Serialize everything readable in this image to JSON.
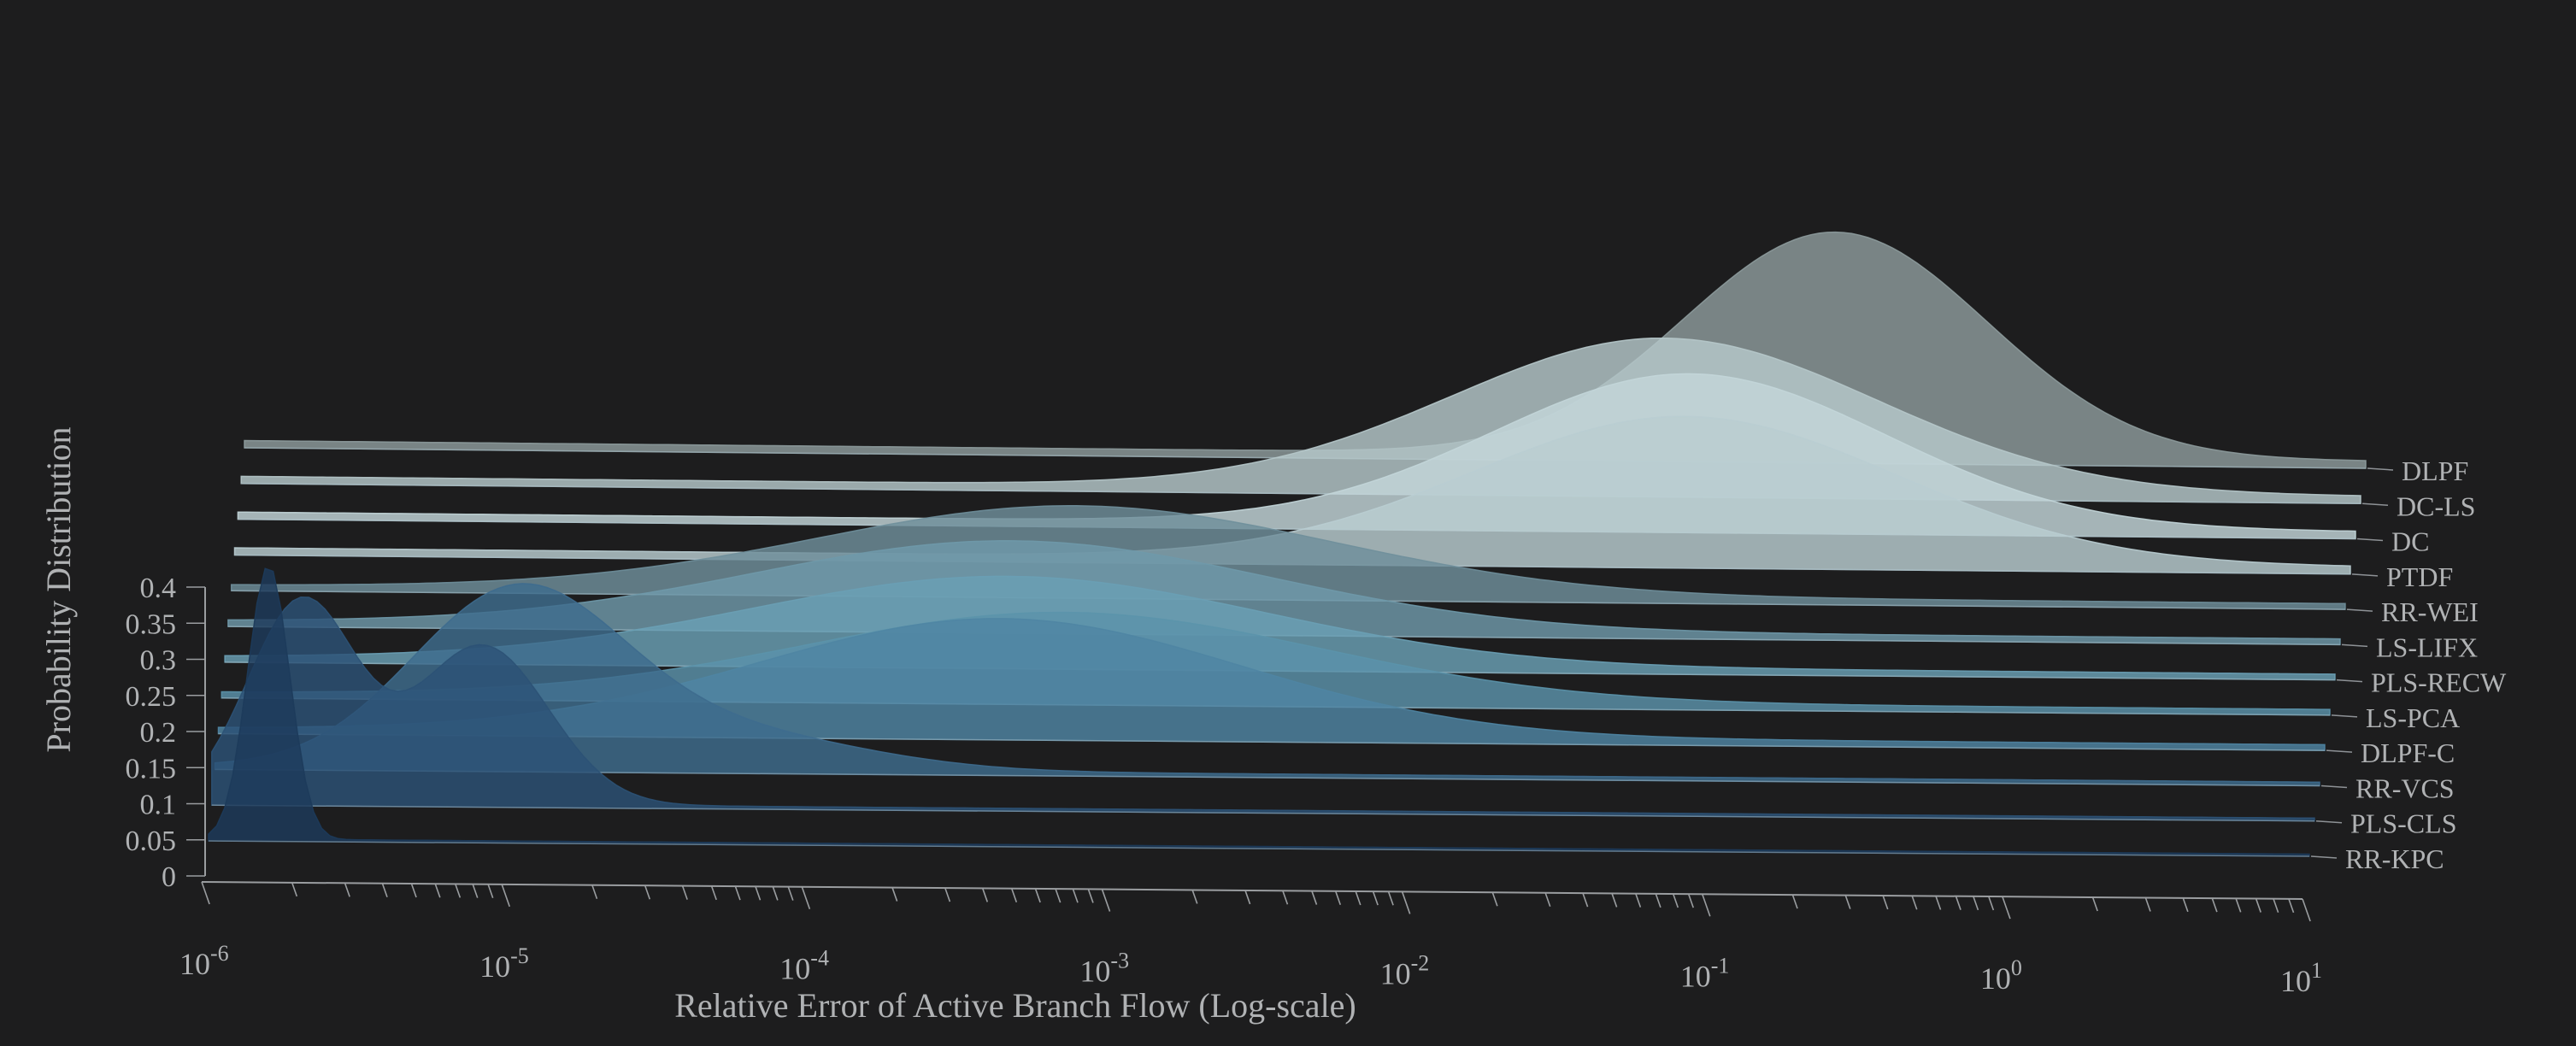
{
  "chart_data": {
    "type": "area",
    "subtype": "3d-ridgeline-density",
    "xlabel": "Relative Error of Active Branch Flow (Log-scale)",
    "ylabel": "Probability Distribution",
    "x_scale": "log",
    "xlim": [
      1e-06,
      10
    ],
    "x_tick_labels": [
      {
        "base": "10",
        "exp": "-6"
      },
      {
        "base": "10",
        "exp": "-5"
      },
      {
        "base": "10",
        "exp": "-4"
      },
      {
        "base": "10",
        "exp": "-3"
      },
      {
        "base": "10",
        "exp": "-2"
      },
      {
        "base": "10",
        "exp": "-1"
      },
      {
        "base": "10",
        "exp": "0"
      },
      {
        "base": "10",
        "exp": "1"
      }
    ],
    "ylim": [
      0,
      0.4
    ],
    "y_ticks": [
      0,
      0.05,
      0.1,
      0.15,
      0.2,
      0.25,
      0.3,
      0.35,
      0.4
    ],
    "y_tick_labels": [
      "0",
      "0.05",
      "0.1",
      "0.15",
      "0.2",
      "0.25",
      "0.3",
      "0.35",
      "0.4"
    ],
    "grid": false,
    "legend": "none (series labeled at right end of each ridge)",
    "series": [
      {
        "name": "DLPF",
        "color": "#8d9b9c",
        "components": [
          {
            "log10_center": -0.75,
            "sd": 0.5,
            "peak": 0.31
          }
        ],
        "tail": 0.01
      },
      {
        "name": "DC-LS",
        "color": "#b6c8ca",
        "components": [
          {
            "log10_center": -1.3,
            "sd": 0.7,
            "peak": 0.21
          }
        ],
        "tail": 0.01
      },
      {
        "name": "DC",
        "color": "#c3d6d9",
        "components": [
          {
            "log10_center": -1.2,
            "sd": 0.65,
            "peak": 0.21
          }
        ],
        "tail": 0.01
      },
      {
        "name": "PTDF",
        "color": "#b9cdd1",
        "components": [
          {
            "log10_center": -1.2,
            "sd": 0.7,
            "peak": 0.2
          }
        ],
        "tail": 0.01
      },
      {
        "name": "RR-WEI",
        "color": "#6f8f9b",
        "components": [
          {
            "log10_center": -3.2,
            "sd": 0.85,
            "peak": 0.12
          }
        ],
        "tail": 0.008
      },
      {
        "name": "LS-LIFX",
        "color": "#6f99aa",
        "components": [
          {
            "log10_center": -3.4,
            "sd": 0.85,
            "peak": 0.12
          }
        ],
        "tail": 0.008
      },
      {
        "name": "PLS-RECW",
        "color": "#6aa0b5",
        "components": [
          {
            "log10_center": -3.4,
            "sd": 0.85,
            "peak": 0.12
          }
        ],
        "tail": 0.008
      },
      {
        "name": "LS-PCA",
        "color": "#5b93ab",
        "components": [
          {
            "log10_center": -3.2,
            "sd": 0.85,
            "peak": 0.12
          }
        ],
        "tail": 0.008
      },
      {
        "name": "DLPF-C",
        "color": "#4f85a3",
        "components": [
          {
            "log10_center": -3.4,
            "sd": 0.8,
            "peak": 0.16
          }
        ],
        "tail": 0.008
      },
      {
        "name": "RR-VCS",
        "color": "#3e6c8e",
        "components": [
          {
            "log10_center": -5.0,
            "sd": 0.35,
            "peak": 0.24
          },
          {
            "log10_center": -4.3,
            "sd": 0.45,
            "peak": 0.05
          }
        ],
        "tail": 0.005
      },
      {
        "name": "PLS-CLS",
        "color": "#2c5276",
        "components": [
          {
            "log10_center": -5.7,
            "sd": 0.18,
            "peak": 0.28
          },
          {
            "log10_center": -5.1,
            "sd": 0.22,
            "peak": 0.22
          }
        ],
        "tail": 0.004
      },
      {
        "name": "RR-KPC",
        "color": "#1d3b5b",
        "components": [
          {
            "log10_center": -5.8,
            "sd": 0.07,
            "peak": 0.38
          }
        ],
        "tail": 0.003
      }
    ]
  }
}
